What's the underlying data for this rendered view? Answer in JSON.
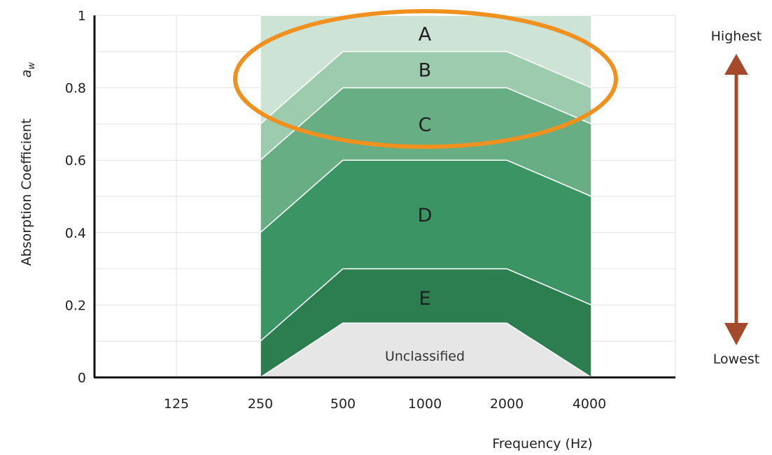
{
  "chart_data": {
    "type": "area",
    "xlabel": "Frequency (Hz)",
    "ylabel": "Absorption Coefficient",
    "ylabel_symbol": "a",
    "ylabel_subscript": "w",
    "categories": [
      "125",
      "250",
      "500",
      "1000",
      "2000",
      "4000"
    ],
    "x": [
      250,
      500,
      1000,
      2000,
      4000
    ],
    "ylim": [
      0,
      1
    ],
    "yticks": [
      0,
      0.2,
      0.4,
      0.6,
      0.8,
      1
    ],
    "ytick_labels": [
      "0",
      "0.2",
      "0.4",
      "0.6",
      "0.8",
      "1"
    ],
    "grid": true,
    "series": [
      {
        "name": "A",
        "lower": [
          0.7,
          0.9,
          0.9,
          0.9,
          0.8
        ],
        "upper": [
          1,
          1,
          1,
          1,
          1
        ],
        "color": "#cde3d5"
      },
      {
        "name": "B",
        "lower": [
          0.6,
          0.8,
          0.8,
          0.8,
          0.7
        ],
        "upper": [
          0.7,
          0.9,
          0.9,
          0.9,
          0.8
        ],
        "color": "#9ccbae"
      },
      {
        "name": "C",
        "lower": [
          0.4,
          0.6,
          0.6,
          0.6,
          0.5
        ],
        "upper": [
          0.6,
          0.8,
          0.8,
          0.8,
          0.7
        ],
        "color": "#68ae84"
      },
      {
        "name": "D",
        "lower": [
          0.1,
          0.3,
          0.3,
          0.3,
          0.2
        ],
        "upper": [
          0.4,
          0.6,
          0.6,
          0.6,
          0.5
        ],
        "color": "#3a9463"
      },
      {
        "name": "E",
        "lower": [
          0,
          0.15,
          0.15,
          0.15,
          0
        ],
        "upper": [
          0.1,
          0.3,
          0.3,
          0.3,
          0.2
        ],
        "color": "#2c7e51"
      },
      {
        "name": "Unclassified",
        "lower": [
          0,
          0,
          0,
          0,
          0
        ],
        "upper": [
          0,
          0.15,
          0.15,
          0.15,
          0
        ],
        "color": "#e6e6e6"
      }
    ],
    "band_label_y": {
      "A": 0.95,
      "B": 0.85,
      "C": 0.7,
      "D": 0.45,
      "E": 0.22,
      "Unclassified": 0.06
    },
    "highlight": {
      "shape": "ellipse",
      "color": "#f0901e",
      "spans": [
        "A",
        "B",
        "C"
      ]
    },
    "scale_arrow": {
      "top_label": "Highest",
      "bottom_label": "Lowest",
      "color": "#a5492d"
    }
  }
}
